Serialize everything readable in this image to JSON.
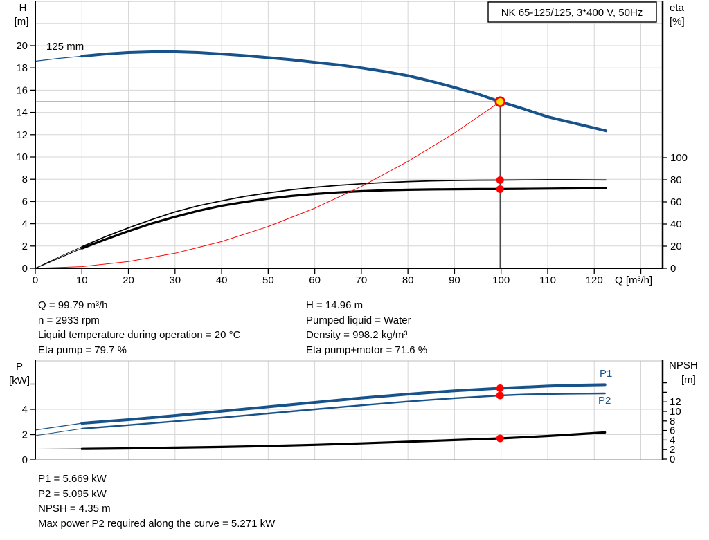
{
  "colors": {
    "curve_blue": "#17538a",
    "red": "#ff0000",
    "yellow": "#ffe600",
    "grid": "#d6d6d6",
    "axis": "#000000",
    "border": "#bdbdbd",
    "op_h_line": "#909090",
    "op_v_line": "#4a4a4a"
  },
  "chart_data": [
    {
      "type": "line",
      "id": "qh-eta-chart",
      "title": "NK 65-125/125, 3*400 V, 50Hz",
      "xlabel": "Q [m³/h]",
      "ylabel_left": [
        "H",
        "[m]"
      ],
      "ylabel_right": [
        "eta",
        "[%]"
      ],
      "curve_label": "125 mm",
      "x_ticks": [
        0,
        10,
        20,
        30,
        40,
        50,
        60,
        70,
        80,
        90,
        100,
        110,
        120
      ],
      "x_grid": [
        10,
        20,
        30,
        40,
        50,
        60,
        70,
        80,
        90,
        100,
        110,
        120,
        130
      ],
      "y_left_ticks": [
        0,
        2,
        4,
        6,
        8,
        10,
        12,
        14,
        16,
        18,
        20
      ],
      "y_left_grid": [
        2,
        4,
        6,
        8,
        10,
        12,
        14,
        16,
        18,
        20,
        22
      ],
      "y_right_ticks": [
        0,
        20,
        40,
        60,
        80,
        100
      ],
      "xlim": [
        0,
        134.7
      ],
      "ylim_left": [
        0,
        24
      ],
      "ylim_right": [
        0,
        100
      ],
      "grid": "on",
      "series": [
        {
          "name": "H 125 mm",
          "axis": "H",
          "color": "blue",
          "w": [
            1.2,
            4
          ],
          "thin_until": 10,
          "points": [
            [
              0,
              18.6
            ],
            [
              5,
              18.85
            ],
            [
              10,
              19.05
            ],
            [
              15,
              19.25
            ],
            [
              20,
              19.38
            ],
            [
              25,
              19.44
            ],
            [
              30,
              19.45
            ],
            [
              35,
              19.38
            ],
            [
              40,
              19.25
            ],
            [
              45,
              19.1
            ],
            [
              50,
              18.92
            ],
            [
              55,
              18.73
            ],
            [
              60,
              18.5
            ],
            [
              65,
              18.28
            ],
            [
              70,
              18.0
            ],
            [
              75,
              17.68
            ],
            [
              80,
              17.3
            ],
            [
              85,
              16.8
            ],
            [
              90,
              16.25
            ],
            [
              95,
              15.65
            ],
            [
              99.79,
              14.96
            ],
            [
              105,
              14.3
            ],
            [
              110,
              13.6
            ],
            [
              115,
              13.1
            ],
            [
              120,
              12.6
            ],
            [
              122.5,
              12.35
            ]
          ]
        },
        {
          "name": "eta pump",
          "axis": "eta",
          "color": "#000000",
          "w": [
            0.9,
            1.7
          ],
          "thin_until": 10,
          "points": [
            [
              0,
              0
            ],
            [
              5,
              10
            ],
            [
              10,
              19.5
            ],
            [
              15,
              28.5
            ],
            [
              20,
              36.5
            ],
            [
              25,
              44
            ],
            [
              30,
              51
            ],
            [
              35,
              56.5
            ],
            [
              40,
              61
            ],
            [
              45,
              65
            ],
            [
              50,
              68.2
            ],
            [
              55,
              71
            ],
            [
              60,
              73.2
            ],
            [
              65,
              75
            ],
            [
              70,
              76.4
            ],
            [
              75,
              77.5
            ],
            [
              80,
              78.4
            ],
            [
              85,
              79
            ],
            [
              90,
              79.4
            ],
            [
              95,
              79.6
            ],
            [
              99.79,
              79.7
            ],
            [
              105,
              79.9
            ],
            [
              110,
              80
            ],
            [
              115,
              80
            ],
            [
              122.5,
              79.8
            ]
          ]
        },
        {
          "name": "eta pump+motor",
          "axis": "eta",
          "color": "#000000",
          "w": [
            1.1,
            3.2
          ],
          "thin_until": 10,
          "points": [
            [
              0,
              0
            ],
            [
              5,
              9
            ],
            [
              10,
              18
            ],
            [
              15,
              26
            ],
            [
              20,
              33.5
            ],
            [
              25,
              40.5
            ],
            [
              30,
              46.5
            ],
            [
              35,
              52
            ],
            [
              40,
              56.5
            ],
            [
              45,
              60
            ],
            [
              50,
              63
            ],
            [
              55,
              65.4
            ],
            [
              60,
              67.2
            ],
            [
              65,
              68.6
            ],
            [
              70,
              69.7
            ],
            [
              75,
              70.5
            ],
            [
              80,
              71
            ],
            [
              85,
              71.3
            ],
            [
              90,
              71.5
            ],
            [
              95,
              71.6
            ],
            [
              99.79,
              71.6
            ],
            [
              105,
              71.8
            ],
            [
              110,
              72
            ],
            [
              115,
              72.2
            ],
            [
              122.5,
              72.4
            ]
          ]
        },
        {
          "name": "system curve",
          "axis": "H",
          "color": "red",
          "w": [
            1,
            1
          ],
          "thin_until": 0,
          "points": [
            [
              0,
              0
            ],
            [
              10,
              0.15
            ],
            [
              20,
              0.6
            ],
            [
              30,
              1.35
            ],
            [
              40,
              2.4
            ],
            [
              50,
              3.75
            ],
            [
              60,
              5.4
            ],
            [
              70,
              7.35
            ],
            [
              80,
              9.6
            ],
            [
              90,
              12.15
            ],
            [
              99.79,
              14.96
            ]
          ]
        }
      ],
      "operating_point": {
        "Q": 99.79,
        "H": 14.96,
        "eta_pump": 79.7,
        "eta_pump_motor": 71.6
      }
    },
    {
      "type": "line",
      "id": "power-npsh-chart",
      "ylabel_left": [
        "P",
        "[kW]"
      ],
      "ylabel_right": [
        "NPSH",
        "[m]"
      ],
      "y_left_ticks": [
        0,
        2,
        4
      ],
      "y_left_tick_marks": [
        0,
        2,
        4,
        6
      ],
      "y_left_grid": [
        2,
        4,
        6
      ],
      "y_right_ticks": [
        0,
        2,
        4,
        6,
        8,
        10,
        12
      ],
      "y_right_tick_marks": [
        0,
        2,
        4,
        6,
        8,
        10,
        12,
        14,
        16
      ],
      "x_grid": [
        10,
        20,
        30,
        40,
        50,
        60,
        70,
        80,
        90,
        100,
        110,
        120,
        130
      ],
      "xlim": [
        0,
        134.7
      ],
      "ylim_left": [
        0,
        7.8
      ],
      "ylim_right": [
        0,
        20.6
      ],
      "grid": "on",
      "series": [
        {
          "name": "P1",
          "axis": "P",
          "color": "blue",
          "w": [
            1.2,
            4
          ],
          "thin_until": 10,
          "points": [
            [
              0,
              2.36
            ],
            [
              10,
              2.9
            ],
            [
              20,
              3.18
            ],
            [
              30,
              3.5
            ],
            [
              40,
              3.85
            ],
            [
              50,
              4.2
            ],
            [
              60,
              4.55
            ],
            [
              70,
              4.9
            ],
            [
              80,
              5.2
            ],
            [
              90,
              5.47
            ],
            [
              99.79,
              5.669
            ],
            [
              105,
              5.76
            ],
            [
              110,
              5.84
            ],
            [
              115,
              5.9
            ],
            [
              122.3,
              5.95
            ]
          ]
        },
        {
          "name": "P2",
          "axis": "P",
          "color": "blue",
          "w": [
            1,
            2.4
          ],
          "thin_until": 10,
          "points": [
            [
              0,
              1.92
            ],
            [
              10,
              2.47
            ],
            [
              20,
              2.75
            ],
            [
              30,
              3.05
            ],
            [
              40,
              3.35
            ],
            [
              50,
              3.67
            ],
            [
              60,
              4.0
            ],
            [
              70,
              4.32
            ],
            [
              80,
              4.62
            ],
            [
              90,
              4.88
            ],
            [
              99.79,
              5.095
            ],
            [
              105,
              5.17
            ],
            [
              110,
              5.21
            ],
            [
              115,
              5.24
            ],
            [
              122.3,
              5.26
            ]
          ]
        },
        {
          "name": "NPSH",
          "axis": "NPSH",
          "color": "#000000",
          "w": [
            1.1,
            3.2
          ],
          "thin_until": 10,
          "points": [
            [
              0,
              2.1
            ],
            [
              10,
              2.15
            ],
            [
              20,
              2.25
            ],
            [
              30,
              2.4
            ],
            [
              40,
              2.55
            ],
            [
              50,
              2.75
            ],
            [
              60,
              3.0
            ],
            [
              70,
              3.3
            ],
            [
              80,
              3.65
            ],
            [
              90,
              4.0
            ],
            [
              99.79,
              4.35
            ],
            [
              105,
              4.6
            ],
            [
              110,
              4.85
            ],
            [
              115,
              5.15
            ],
            [
              122.3,
              5.6
            ]
          ]
        }
      ],
      "operating_point": {
        "Q": 99.79,
        "P1": 5.669,
        "P2": 5.095,
        "NPSH": 4.35
      }
    }
  ],
  "info": {
    "left": [
      "Q = 99.79 m³/h",
      "n = 2933 rpm",
      "Liquid temperature during operation = 20 °C",
      "Eta pump = 79.7 %"
    ],
    "right": [
      "H = 14.96 m",
      "Pumped liquid = Water",
      "Density = 998.2 kg/m³",
      "Eta pump+motor = 71.6 %"
    ]
  },
  "results": [
    "P1 = 5.669 kW",
    "P2 = 5.095 kW",
    "NPSH = 4.35 m",
    "Max power P2 required along the curve = 5.271 kW"
  ]
}
